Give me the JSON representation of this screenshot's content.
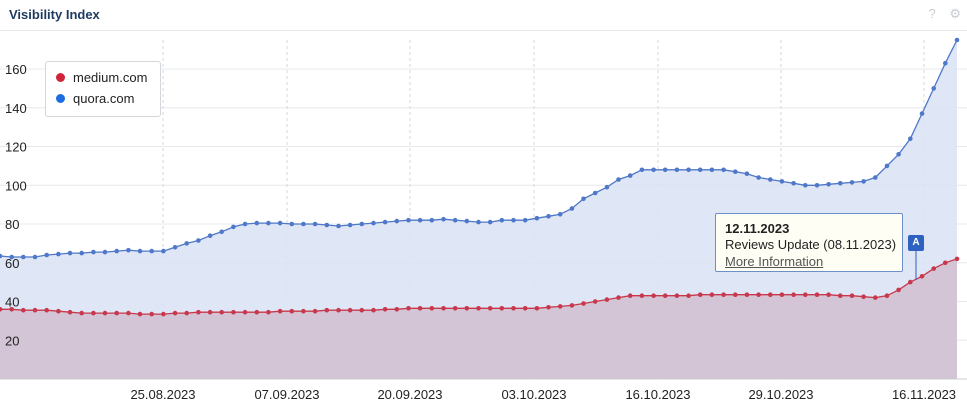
{
  "header": {
    "title": "Visibility Index",
    "help_icon": "question-icon",
    "settings_icon": "gear-icon"
  },
  "legend": [
    {
      "name": "medium.com",
      "color": "#d0243a"
    },
    {
      "name": "quora.com",
      "color": "#1c6ee0"
    }
  ],
  "tooltip": {
    "date": "12.11.2023",
    "description": "Reviews Update (08.11.2023)",
    "link": "More Information",
    "marker_label": "A"
  },
  "chart_data": {
    "type": "area",
    "title": "Visibility Index",
    "x_tick_labels": [
      "25.08.2023",
      "07.09.2023",
      "20.09.2023",
      "03.10.2023",
      "16.10.2023",
      "29.10.2023",
      "16.11.2023"
    ],
    "y_ticks": [
      20,
      40,
      60,
      80,
      100,
      120,
      140,
      160
    ],
    "ylim": [
      0,
      175
    ],
    "grid": true,
    "legend_placement": "top-left",
    "series": [
      {
        "name": "quora.com",
        "color": "#4f78c9",
        "fill": "#dbe3f4",
        "values": [
          63.5,
          63,
          63,
          63,
          64,
          64.5,
          65,
          65,
          65.5,
          65.5,
          66,
          66.5,
          66,
          66,
          66,
          68,
          70,
          71.5,
          74,
          76,
          78.5,
          80,
          80.5,
          80.5,
          80.5,
          80,
          80,
          80,
          79.5,
          79,
          79.5,
          80,
          80.5,
          81,
          81.5,
          82,
          82,
          82,
          82.5,
          82,
          81.5,
          81,
          81,
          82,
          82,
          82,
          83,
          84,
          85,
          88,
          93,
          96,
          99,
          103,
          105,
          108,
          108,
          108,
          108,
          108,
          108,
          108,
          108,
          107,
          106,
          104,
          103,
          102,
          101,
          100,
          100,
          100.5,
          101,
          101.5,
          102,
          104,
          110,
          116,
          124,
          137,
          150,
          163,
          175
        ]
      },
      {
        "name": "medium.com",
        "color": "#c8384c",
        "fill": "#d2c1d2",
        "values": [
          36,
          36,
          35.5,
          35.5,
          35.5,
          35,
          34.5,
          34,
          34,
          34,
          34,
          34,
          33.5,
          33.5,
          33.5,
          34,
          34,
          34.5,
          34.5,
          34.5,
          34.5,
          34.5,
          34.5,
          34.5,
          35,
          35,
          35,
          35,
          35.5,
          35.5,
          35.5,
          35.5,
          35.5,
          36,
          36,
          36.5,
          36.5,
          36.5,
          36.5,
          36.5,
          36.5,
          36.5,
          36.5,
          36.5,
          36.5,
          36.5,
          36.5,
          37,
          37.5,
          38,
          39,
          40,
          41,
          42,
          43,
          43,
          43,
          43,
          43,
          43,
          43.5,
          43.5,
          43.5,
          43.5,
          43.5,
          43.5,
          43.5,
          43.5,
          43.5,
          43.5,
          43.5,
          43.5,
          43,
          43,
          42.5,
          42,
          43,
          46,
          50,
          53,
          57,
          60,
          62
        ]
      }
    ]
  }
}
